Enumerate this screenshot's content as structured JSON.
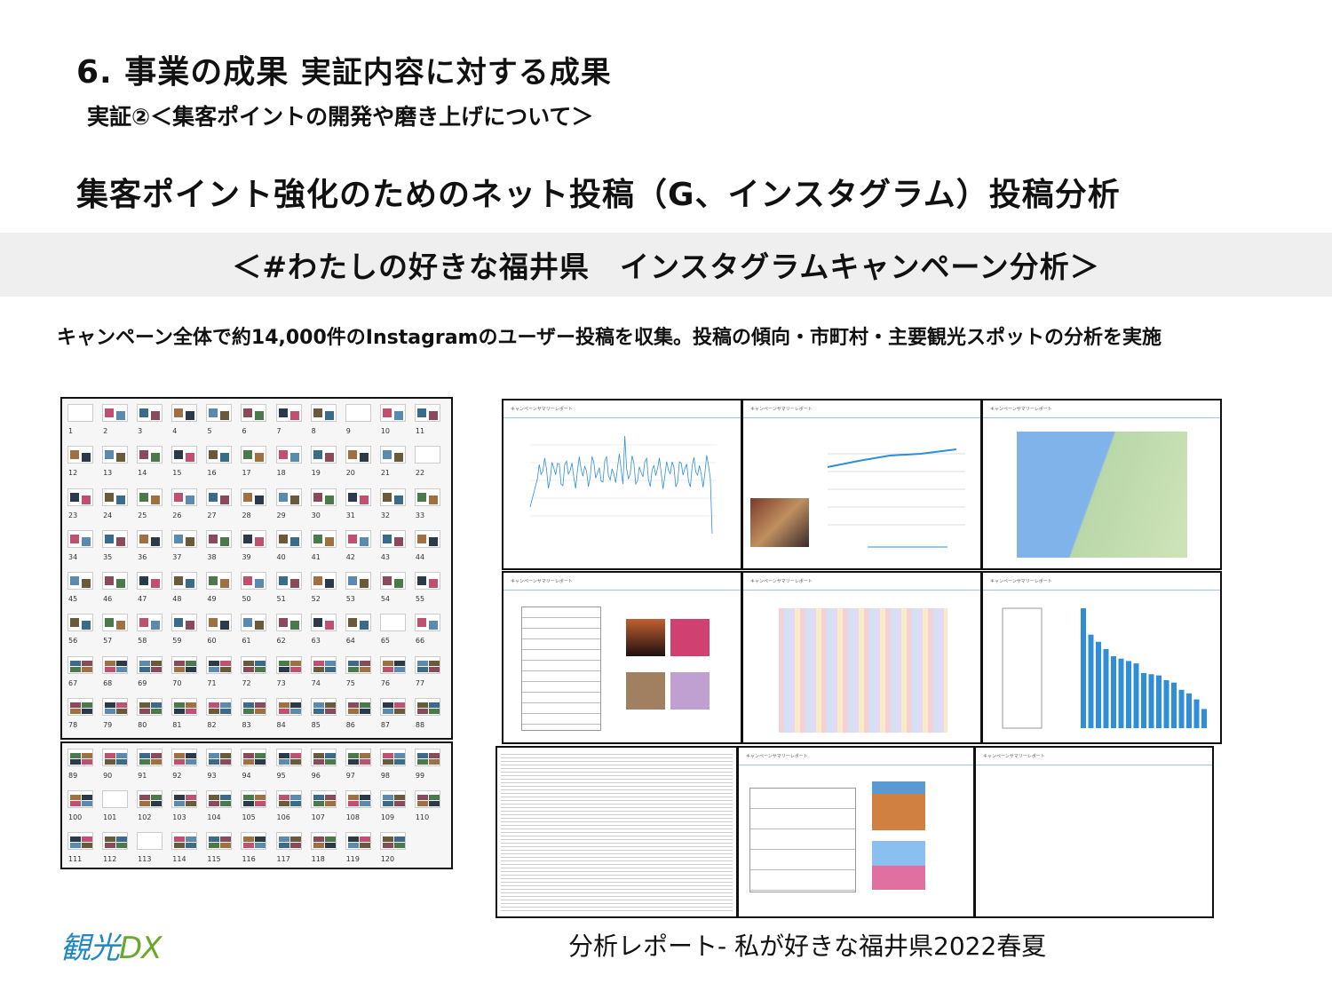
{
  "header": {
    "title_main": "6. 事業の成果",
    "title_sub": "実証内容に対する成果",
    "subtitle": "実証②＜集客ポイントの開発や磨き上げについて＞",
    "heading": "集客ポイント強化のためのネット投稿（G、インスタグラム）投稿分析",
    "band": "＜#わたしの好きな福井県　インスタグラムキャンペーン分析＞",
    "body": "キャンペーン全体で約14,000件のInstagramのユーザー投稿を収集。投稿の傾向・市町村・主要観光スポットの分析を実施"
  },
  "thumbnails": {
    "total": 120,
    "panel1_count": 88
  },
  "reports": {
    "header_label": "キャンペーンサマリーレポート",
    "accent": "#2f8fd6",
    "bar_values": [
      1000,
      780,
      720,
      660,
      600,
      580,
      560,
      540,
      460,
      450,
      440,
      400,
      380,
      320,
      290,
      240,
      160
    ]
  },
  "caption": "分析レポート- 私が好きな福井県2022春夏",
  "logo": {
    "text_a": "観光",
    "text_b": "DX",
    "color_a": "#1f86c8",
    "color_b": "#6aa82c"
  }
}
